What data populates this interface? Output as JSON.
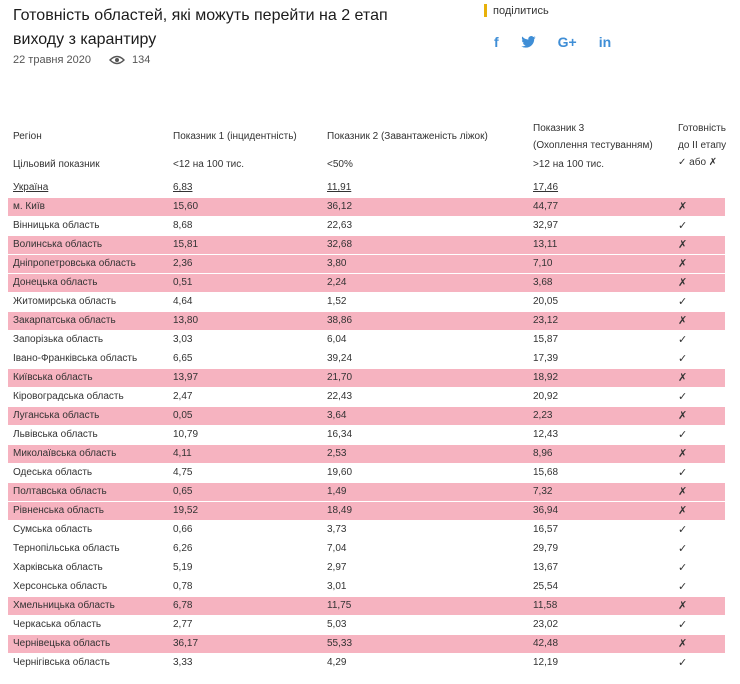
{
  "article": {
    "title": "Готовність областей, які можуть перейти на 2 етап виходу з карантиру",
    "date": "22 травня 2020",
    "views": "134",
    "views_icon": "eye-icon"
  },
  "share": {
    "label": "поділитись",
    "accent": "#e8b10a",
    "icon_color": "#3f8ed6",
    "icons": [
      "facebook-icon",
      "twitter-icon",
      "google-plus-icon",
      "linkedin-icon"
    ],
    "facebook_glyph": "f",
    "google_glyph": "G+",
    "linkedin_glyph": "in"
  },
  "table": {
    "highlight_color": "#f6b3c0",
    "headers": {
      "region": "Регіон",
      "ind1": "Показник 1 (інцидентність)",
      "ind2": "Показник 2 (Завантаженість ліжок)",
      "ind3_line1": "Показник 3",
      "ind3_line2": "(Охоплення тестуванням)",
      "ready_line1": "Готовність",
      "ready_line2": "до ІІ етапу",
      "ready_line3": "✓ або ✗"
    },
    "target_row": {
      "label": "Цільовий показник",
      "ind1": "<12 на 100 тис.",
      "ind2": "<50%",
      "ind3": ">12 на 100 тис."
    },
    "rows": [
      {
        "region": "Україна",
        "i1": "6,83",
        "i2": "11,91",
        "i3": "17,46",
        "ready": "",
        "bad": false
      },
      {
        "region": "м. Київ",
        "i1": "15,60",
        "i2": "36,12",
        "i3": "44,77",
        "ready": "✗",
        "bad": true
      },
      {
        "region": "Вінницька область",
        "i1": "8,68",
        "i2": "22,63",
        "i3": "32,97",
        "ready": "✓",
        "bad": false
      },
      {
        "region": "Волинська область",
        "i1": "15,81",
        "i2": "32,68",
        "i3": "13,11",
        "ready": "✗",
        "bad": true
      },
      {
        "region": "Дніпропетровська область",
        "i1": "2,36",
        "i2": "3,80",
        "i3": "7,10",
        "ready": "✗",
        "bad": true
      },
      {
        "region": "Донецька область",
        "i1": "0,51",
        "i2": "2,24",
        "i3": "3,68",
        "ready": "✗",
        "bad": true
      },
      {
        "region": "Житомирська область",
        "i1": "4,64",
        "i2": "1,52",
        "i3": "20,05",
        "ready": "✓",
        "bad": false
      },
      {
        "region": "Закарпатська область",
        "i1": "13,80",
        "i2": "38,86",
        "i3": "23,12",
        "ready": "✗",
        "bad": true
      },
      {
        "region": "Запорізька область",
        "i1": "3,03",
        "i2": "6,04",
        "i3": "15,87",
        "ready": "✓",
        "bad": false
      },
      {
        "region": "Івано-Франківська область",
        "i1": "6,65",
        "i2": "39,24",
        "i3": "17,39",
        "ready": "✓",
        "bad": false
      },
      {
        "region": "Київська область",
        "i1": "13,97",
        "i2": "21,70",
        "i3": "18,92",
        "ready": "✗",
        "bad": true
      },
      {
        "region": "Кіровоградська область",
        "i1": "2,47",
        "i2": "22,43",
        "i3": "20,92",
        "ready": "✓",
        "bad": false
      },
      {
        "region": "Луганська область",
        "i1": "0,05",
        "i2": "3,64",
        "i3": "2,23",
        "ready": "✗",
        "bad": true
      },
      {
        "region": "Львівська область",
        "i1": "10,79",
        "i2": "16,34",
        "i3": "12,43",
        "ready": "✓",
        "bad": false
      },
      {
        "region": "Миколаївська область",
        "i1": "4,11",
        "i2": "2,53",
        "i3": "8,96",
        "ready": "✗",
        "bad": true
      },
      {
        "region": "Одеська область",
        "i1": "4,75",
        "i2": "19,60",
        "i3": "15,68",
        "ready": "✓",
        "bad": false
      },
      {
        "region": "Полтавська область",
        "i1": "0,65",
        "i2": "1,49",
        "i3": "7,32",
        "ready": "✗",
        "bad": true
      },
      {
        "region": "Рівненська область",
        "i1": "19,52",
        "i2": "18,49",
        "i3": "36,94",
        "ready": "✗",
        "bad": true
      },
      {
        "region": "Сумська область",
        "i1": "0,66",
        "i2": "3,73",
        "i3": "16,57",
        "ready": "✓",
        "bad": false
      },
      {
        "region": "Тернопільська область",
        "i1": "6,26",
        "i2": "7,04",
        "i3": "29,79",
        "ready": "✓",
        "bad": false
      },
      {
        "region": "Харківська область",
        "i1": "5,19",
        "i2": "2,97",
        "i3": "13,67",
        "ready": "✓",
        "bad": false
      },
      {
        "region": "Херсонська область",
        "i1": "0,78",
        "i2": "3,01",
        "i3": "25,54",
        "ready": "✓",
        "bad": false
      },
      {
        "region": "Хмельницька область",
        "i1": "6,78",
        "i2": "11,75",
        "i3": "11,58",
        "ready": "✗",
        "bad": true
      },
      {
        "region": "Черкаська область",
        "i1": "2,77",
        "i2": "5,03",
        "i3": "23,02",
        "ready": "✓",
        "bad": false
      },
      {
        "region": "Чернівецька область",
        "i1": "36,17",
        "i2": "55,33",
        "i3": "42,48",
        "ready": "✗",
        "bad": true
      },
      {
        "region": "Чернігівська область",
        "i1": "3,33",
        "i2": "4,29",
        "i3": "12,19",
        "ready": "✓",
        "bad": false
      }
    ]
  }
}
